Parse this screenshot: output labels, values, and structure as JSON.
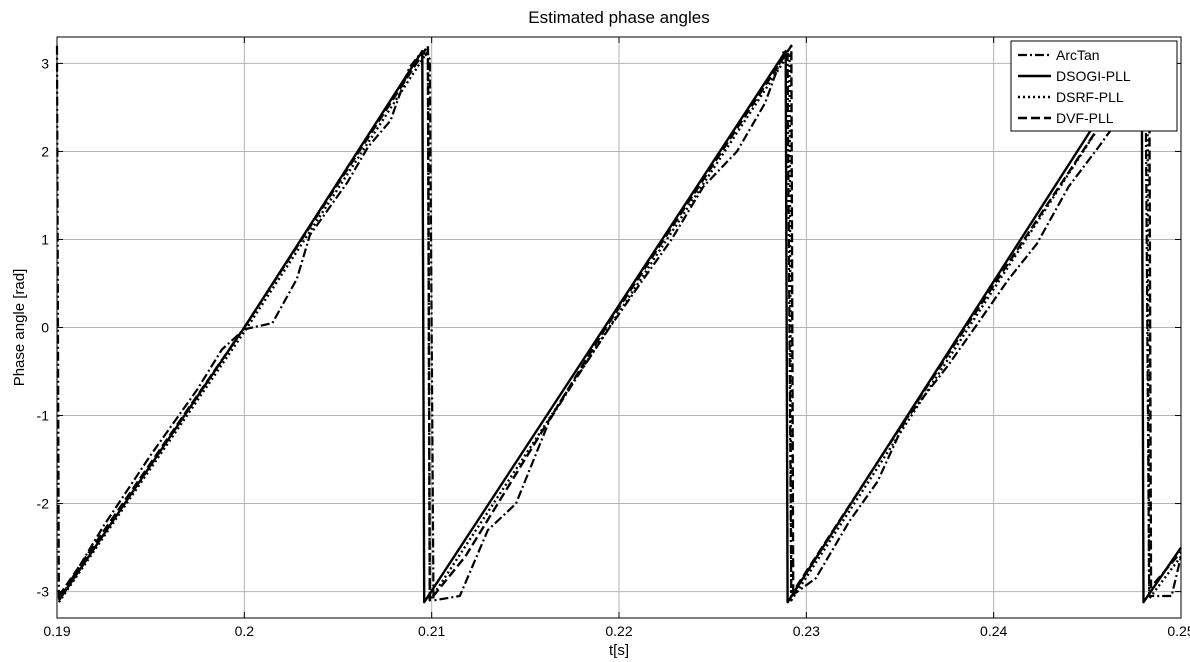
{
  "chart_data": {
    "type": "line",
    "title": "Estimated phase angles",
    "xlabel": "t[s]",
    "ylabel": "Phase angle [rad]",
    "xlim": [
      0.19,
      0.25
    ],
    "ylim": [
      -3.3,
      3.3
    ],
    "x_ticks": [
      "0.19",
      "0.2",
      "0.21",
      "0.22",
      "0.23",
      "0.24",
      "0.25"
    ],
    "y_ticks": [
      "-3",
      "-2",
      "-1",
      "0",
      "1",
      "2",
      "3"
    ],
    "grid": true,
    "legend_position": "top-right",
    "series": [
      {
        "name": "ArcTan",
        "style": "dashdot",
        "points": [
          [
            0.19,
            3.2
          ],
          [
            0.1901,
            -3.1
          ],
          [
            0.1925,
            -2.25
          ],
          [
            0.195,
            -1.45
          ],
          [
            0.1975,
            -0.7
          ],
          [
            0.1988,
            -0.25
          ],
          [
            0.2,
            -0.02
          ],
          [
            0.2015,
            0.05
          ],
          [
            0.2028,
            0.55
          ],
          [
            0.2035,
            1.05
          ],
          [
            0.2055,
            1.65
          ],
          [
            0.2066,
            2.05
          ],
          [
            0.2078,
            2.35
          ],
          [
            0.2088,
            2.95
          ],
          [
            0.2095,
            3.14
          ],
          [
            0.2099,
            3.05
          ],
          [
            0.2101,
            -3.1
          ],
          [
            0.2115,
            -3.05
          ],
          [
            0.213,
            -2.3
          ],
          [
            0.2145,
            -2.0
          ],
          [
            0.2163,
            -1.05
          ],
          [
            0.2178,
            -0.55
          ],
          [
            0.2195,
            0.0
          ],
          [
            0.2213,
            0.55
          ],
          [
            0.2228,
            1.0
          ],
          [
            0.2245,
            1.6
          ],
          [
            0.2263,
            2.0
          ],
          [
            0.2278,
            2.55
          ],
          [
            0.2288,
            3.14
          ],
          [
            0.229,
            3.1
          ],
          [
            0.2292,
            -3.05
          ],
          [
            0.2305,
            -2.85
          ],
          [
            0.2323,
            -2.2
          ],
          [
            0.2338,
            -1.75
          ],
          [
            0.2353,
            -1.05
          ],
          [
            0.2375,
            -0.45
          ],
          [
            0.239,
            0.0
          ],
          [
            0.2408,
            0.55
          ],
          [
            0.2423,
            0.95
          ],
          [
            0.244,
            1.6
          ],
          [
            0.2456,
            2.05
          ],
          [
            0.2473,
            2.55
          ],
          [
            0.2481,
            3.1
          ],
          [
            0.2483,
            -3.05
          ],
          [
            0.2495,
            -3.05
          ],
          [
            0.25,
            -2.6
          ]
        ]
      },
      {
        "name": "DSOGI-PLL",
        "style": "solid",
        "points": [
          [
            0.1901,
            -3.1
          ],
          [
            0.2,
            0.0
          ],
          [
            0.2095,
            3.14
          ],
          [
            0.2096,
            -3.12
          ],
          [
            0.2289,
            3.14
          ],
          [
            0.229,
            -3.12
          ],
          [
            0.2479,
            3.14
          ],
          [
            0.248,
            -3.12
          ],
          [
            0.25,
            -2.5
          ]
        ]
      },
      {
        "name": "DSRF-PLL",
        "style": "dotted",
        "points": [
          [
            0.1901,
            -3.12
          ],
          [
            0.2,
            -0.05
          ],
          [
            0.2098,
            3.14
          ],
          [
            0.2099,
            -3.1
          ],
          [
            0.2291,
            3.12
          ],
          [
            0.2292,
            -3.1
          ],
          [
            0.2482,
            3.12
          ],
          [
            0.2483,
            -3.08
          ],
          [
            0.25,
            -2.6
          ]
        ]
      },
      {
        "name": "DVF-PLL",
        "style": "dashed",
        "points": [
          [
            0.1901,
            -3.05
          ],
          [
            0.2,
            0.0
          ],
          [
            0.2098,
            3.2
          ],
          [
            0.2099,
            -3.1
          ],
          [
            0.2118,
            -2.6
          ],
          [
            0.2193,
            0.0
          ],
          [
            0.2292,
            3.2
          ],
          [
            0.2293,
            -3.0
          ],
          [
            0.2385,
            0.0
          ],
          [
            0.2483,
            3.14
          ],
          [
            0.2484,
            -2.95
          ],
          [
            0.25,
            -2.55
          ]
        ]
      }
    ]
  }
}
